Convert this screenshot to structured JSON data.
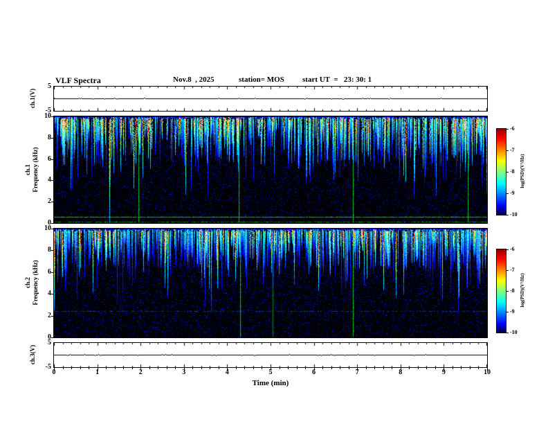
{
  "title": {
    "main": "VLF Spectra",
    "date": "Nov.8  , 2025",
    "station": "station= MOS",
    "start_ut": "start UT  =   23: 30: 1"
  },
  "axes": {
    "x": {
      "label": "Time (min)",
      "min": 0,
      "max": 10,
      "ticks": [
        "0",
        "1",
        "2",
        "3",
        "4",
        "5",
        "6",
        "7",
        "8",
        "9",
        "10"
      ]
    },
    "strip1": {
      "label": "ch.1(V)",
      "tick_top": "5",
      "tick_bottom": "-5",
      "min": -5,
      "max": 5
    },
    "strip2": {
      "label": "ch.3(V)",
      "tick_top": "5",
      "tick_bottom": "-5",
      "min": -5,
      "max": 5
    },
    "spec1": {
      "channel": "ch.1",
      "freq_label": "Frequency (kHz)",
      "min": 0,
      "max": 10,
      "ticks": [
        "10",
        "8",
        "6",
        "4",
        "2",
        "0"
      ]
    },
    "spec2": {
      "channel": "ch.2",
      "freq_label": "Frequency (kHz)",
      "min": 0,
      "max": 10,
      "ticks": [
        "10",
        "8",
        "6",
        "4",
        "2",
        "0"
      ]
    }
  },
  "colorbar": {
    "label": "log(PSD)(V²/Hz)",
    "ticks": [
      "-6",
      "-7",
      "-8",
      "-9",
      "-10"
    ],
    "min": -10,
    "max": -6
  },
  "colors": {
    "background": "#ffffff",
    "frame": "#000000",
    "spectrogram_background": "#000000",
    "persistent_line_green": "#00dc00"
  },
  "chart_data": {
    "type": "heatmap",
    "title": "VLF Spectra",
    "date": "Nov.8 , 2025",
    "station": "MOS",
    "start_ut": "23:30:1",
    "x": {
      "label": "Time (min)",
      "range": [
        0,
        10
      ],
      "ticks": [
        0,
        1,
        2,
        3,
        4,
        5,
        6,
        7,
        8,
        9,
        10
      ]
    },
    "panels": [
      {
        "id": "ch1-waveform",
        "type": "line",
        "ylabel": "ch.1(V)",
        "yrange": [
          -5,
          5
        ],
        "yticks": [
          5,
          -5
        ],
        "signal": "flat trace at 0 V across full 10 min record"
      },
      {
        "id": "ch1-spectrogram",
        "type": "heatmap",
        "ylabel": "ch.1 Frequency (kHz)",
        "yrange": [
          0,
          10
        ],
        "yticks": [
          0,
          2,
          4,
          6,
          8,
          10
        ],
        "intensity": {
          "label": "log(PSD)(V²/Hz)",
          "range": [
            -10,
            -6
          ],
          "colormap": "jet-on-black"
        },
        "content": "dense impulsive vertical sferic streaks hanging from ~9.8 kHz, typical lower edge 5-7 kHz, strongest reach below 1 kHz; cores cyan/green/yellow with occasional red",
        "persistent_vertical_lines_min": [
          1.95,
          4.27,
          6.9,
          9.55
        ],
        "narrowband_lines_khz": [
          0.6,
          0.15
        ]
      },
      {
        "id": "ch2-spectrogram",
        "type": "heatmap",
        "ylabel": "ch.2 Frequency (kHz)",
        "yrange": [
          0,
          10
        ],
        "yticks": [
          0,
          2,
          4,
          6,
          8,
          10
        ],
        "intensity": {
          "label": "log(PSD)(V²/Hz)",
          "range": [
            -10,
            -6
          ],
          "colormap": "jet-on-black"
        },
        "content": "similar sferic streaks, mostly blue/cyan with green cores, denser and slightly less intense than ch.1",
        "persistent_vertical_lines_min": [
          4.3,
          5.05,
          6.9
        ],
        "narrowband_lines_khz": [
          2.4
        ]
      },
      {
        "id": "ch3-waveform",
        "type": "line",
        "ylabel": "ch.3(V)",
        "yrange": [
          -5,
          5
        ],
        "yticks": [
          5,
          -5
        ],
        "signal": "flat trace at 0 V across full 10 min record"
      }
    ],
    "render": {
      "ch1": {
        "seed": 90125,
        "streak_prob": 0.62,
        "bright_pow": 1.5,
        "len": [
          18,
          50,
          50,
          60
        ],
        "speckle": 9000,
        "vline_gain": [
          220,
          210,
          220,
          205
        ],
        "hline": [
          [
            0.95,
            [
              0,
              215,
              0
            ]
          ],
          [
            0.6,
            [
              0,
              170,
              0
            ]
          ]
        ]
      },
      "ch2": {
        "seed": 24601,
        "streak_prob": 0.7,
        "bright_pow": 2.3,
        "len": [
          16,
          44,
          45,
          70
        ],
        "speckle": 11000,
        "vline_gain": [
          215,
          140,
          220
        ],
        "hline": [
          [
            0.5,
            [
              0,
              70,
              210
            ]
          ]
        ]
      },
      "strip_seed1": 7,
      "strip_seed2": 8
    }
  }
}
